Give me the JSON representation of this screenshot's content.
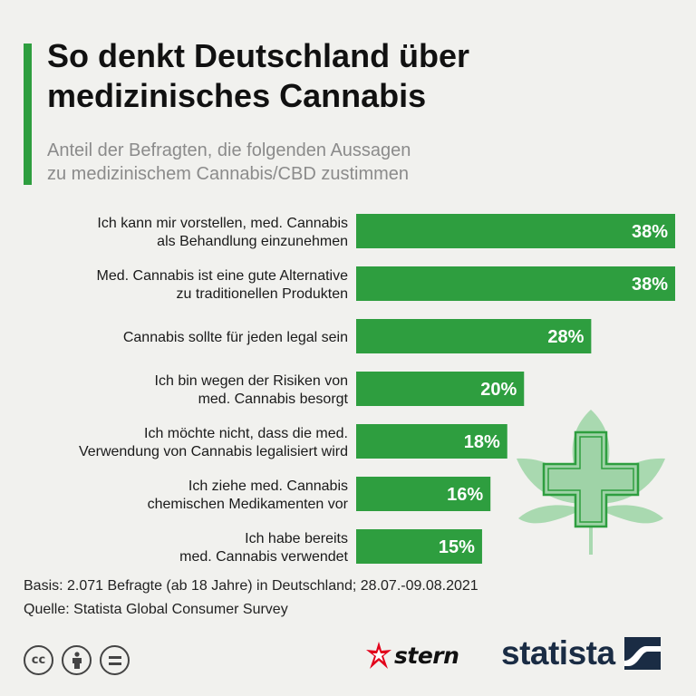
{
  "header": {
    "title_lines": [
      "So denkt Deutschland über",
      "medizinisches Cannabis"
    ],
    "subtitle_lines": [
      "Anteil der Befragten, die folgenden Aussagen",
      "zu medizinischem Cannabis/CBD zustimmen"
    ]
  },
  "chart_data": {
    "type": "bar",
    "orientation": "horizontal",
    "categories": [
      [
        "Ich kann mir vorstellen, med. Cannabis",
        "als Behandlung einzunehmen"
      ],
      [
        "Med. Cannabis ist eine gute Alternative",
        "zu traditionellen Produkten"
      ],
      [
        "Cannabis sollte für jeden legal sein"
      ],
      [
        "Ich bin wegen der Risiken von",
        "med. Cannabis besorgt"
      ],
      [
        "Ich möchte nicht, dass die med.",
        "Verwendung von Cannabis legalisiert wird"
      ],
      [
        "Ich ziehe med. Cannabis",
        "chemischen Medikamenten vor"
      ],
      [
        "Ich habe bereits",
        "med. Cannabis verwendet"
      ]
    ],
    "values": [
      38,
      38,
      28,
      20,
      18,
      16,
      15
    ],
    "value_labels": [
      "38%",
      "38%",
      "28%",
      "20%",
      "18%",
      "16%",
      "15%"
    ],
    "value_unit": "%",
    "xlim": [
      0,
      38
    ],
    "bar_color": "#2e9e3f",
    "grid": false,
    "legend": "none"
  },
  "footer": {
    "basis": "Basis: 2.071 Befragte (ab 18 Jahre) in Deutschland; 28.07.-09.08.2021",
    "source": "Quelle: Statista Global Consumer Survey"
  },
  "logos": {
    "stern": "stern",
    "statista": "statista"
  },
  "icons": {
    "license": [
      "cc-icon",
      "by-icon",
      "nd-icon"
    ],
    "illustration": "cannabis-leaf-medical-cross-icon"
  },
  "colors": {
    "accent": "#2e9e3f",
    "background": "#f1f1ee",
    "illustration": "#a9d9b0",
    "statista_navy": "#1a2c44",
    "stern_red": "#e2001a"
  }
}
